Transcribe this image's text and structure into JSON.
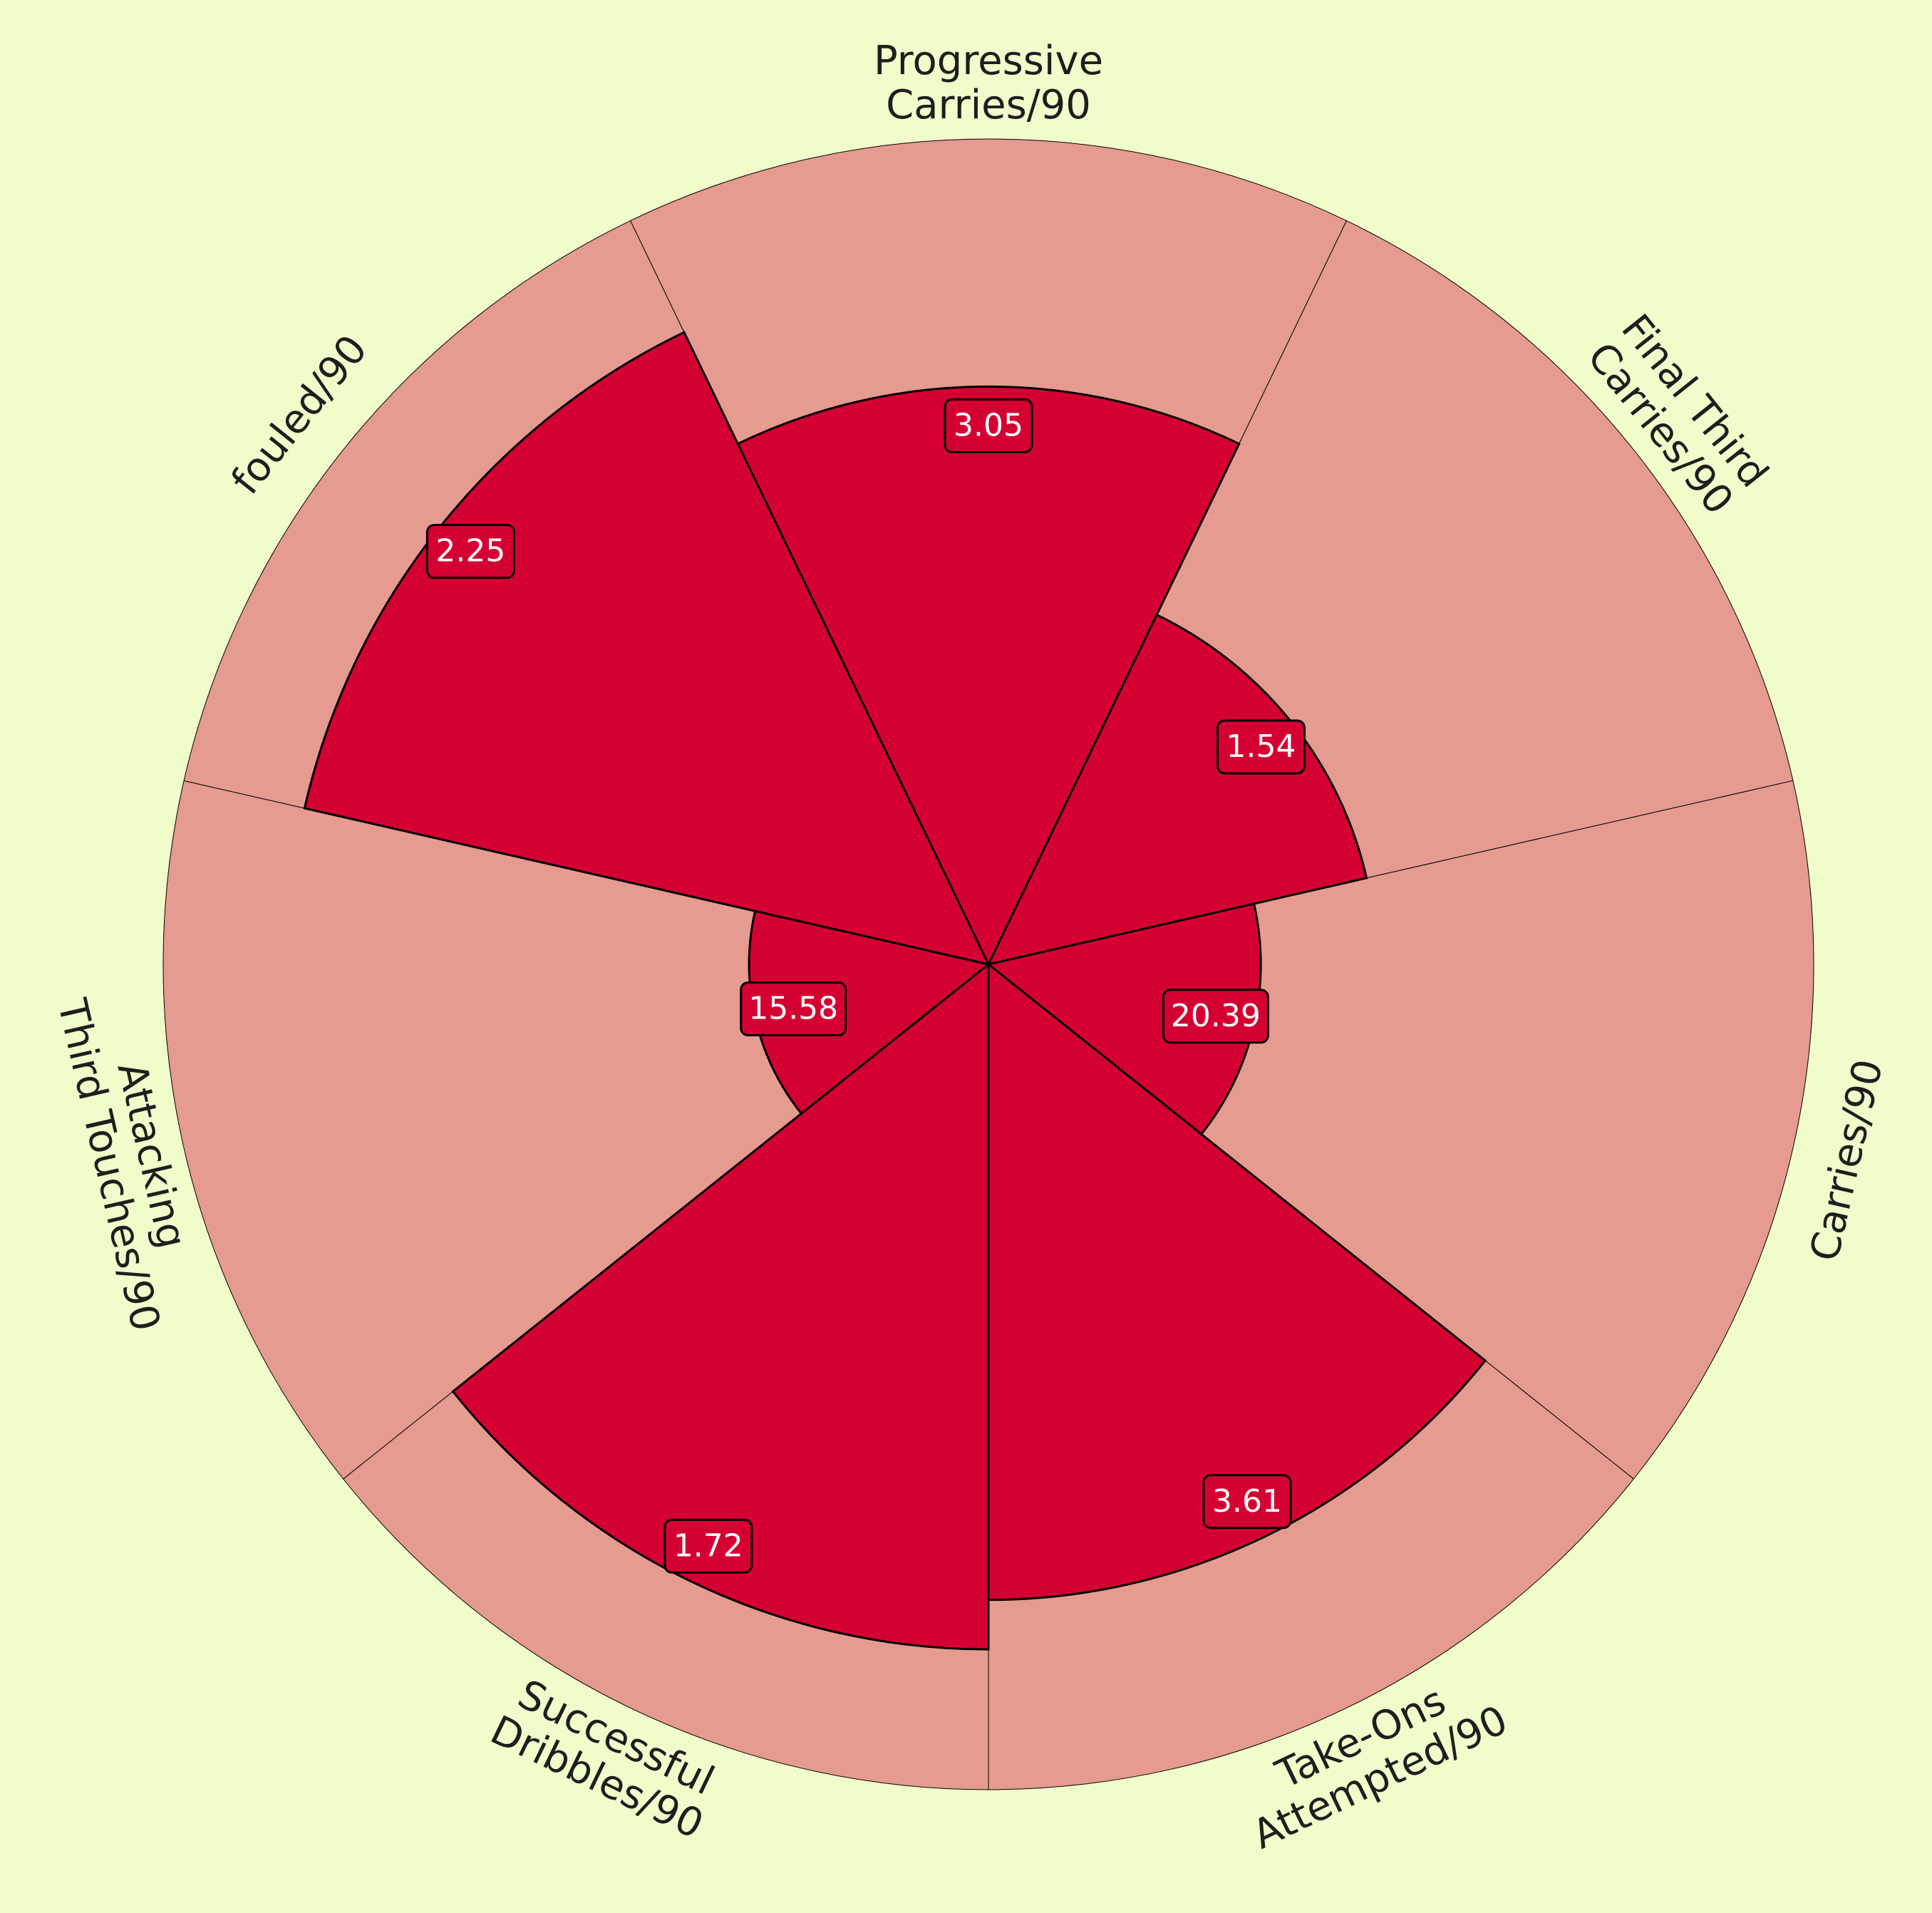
{
  "chart_data": {
    "type": "polar-bar",
    "categories": [
      "Progressive\nCarries/90",
      "Final Third\nCarries/90",
      "Carries/90",
      "Take-Ons\nAttempted/90",
      "Successful\nDribbles/90",
      "Attacking\nThird Touches/90",
      "fouled/90"
    ],
    "values": [
      3.05,
      1.54,
      20.39,
      3.61,
      1.72,
      15.58,
      2.25
    ],
    "value_labels": [
      "3.05",
      "1.54",
      "20.39",
      "3.61",
      "1.72",
      "15.58",
      "2.25"
    ],
    "percentiles": [
      70,
      47,
      33,
      77,
      83,
      29,
      85
    ],
    "range": [
      0,
      100
    ],
    "colors": {
      "background": "#F0FDCB",
      "slice_background": "#E59B8F",
      "slice": "#D50032",
      "label_text": "#FFFFFF",
      "category_text": "#1E1E1E"
    }
  }
}
